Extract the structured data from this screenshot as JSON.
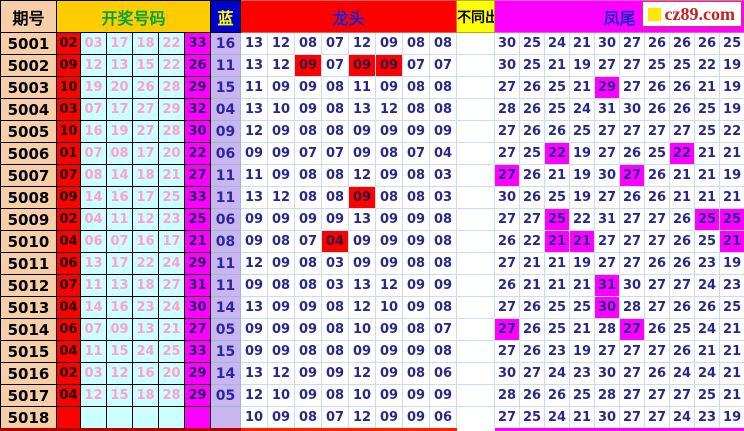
{
  "header": {
    "period_label": "期号",
    "numbers_label": "开奖号码",
    "blue_label": "蓝",
    "dragon_label": "龙头",
    "diff_label": "不同出",
    "phoenix_label": "凤尾"
  },
  "logo": {
    "text": "cz89.com"
  },
  "colors": {
    "period_bg": "#F6CEA8",
    "highlight_red": "#FF0000",
    "cyan_bg": "#CCFFFF",
    "pink_text": "#FF9FCB",
    "highlight_magenta": "#FF00FF",
    "blue_col_bg": "#C9B5F0",
    "navy_text": "#28288C",
    "gold_header_bg": "#FFCC00",
    "green_header_text": "#00A43C",
    "blue_header_bg": "#0000CC",
    "yellow_header_bg": "#FFFF00",
    "logo_text_red": "#C81E1E"
  },
  "rows": [
    {
      "period": "5001",
      "nums": [
        "02",
        "03",
        "17",
        "18",
        "22",
        "33"
      ],
      "blue": "16",
      "dragon": [
        "13",
        "12",
        "08",
        "07",
        "12",
        "09",
        "08",
        "08"
      ],
      "dragon_hl": [],
      "diff": "",
      "phoenix": [
        "30",
        "25",
        "24",
        "21",
        "30",
        "27",
        "26",
        "26",
        "26",
        "25"
      ],
      "phoenix_hl": []
    },
    {
      "period": "5002",
      "nums": [
        "09",
        "12",
        "13",
        "15",
        "22",
        "26"
      ],
      "blue": "11",
      "dragon": [
        "13",
        "12",
        "09",
        "07",
        "09",
        "09",
        "07",
        "07"
      ],
      "dragon_hl": [
        2,
        4,
        5
      ],
      "diff": "",
      "phoenix": [
        "30",
        "25",
        "21",
        "19",
        "27",
        "27",
        "25",
        "25",
        "22",
        "19"
      ],
      "phoenix_hl": []
    },
    {
      "period": "5003",
      "nums": [
        "10",
        "19",
        "20",
        "26",
        "28",
        "29"
      ],
      "blue": "15",
      "dragon": [
        "11",
        "09",
        "09",
        "08",
        "11",
        "09",
        "08",
        "08"
      ],
      "dragon_hl": [],
      "diff": "",
      "phoenix": [
        "27",
        "26",
        "25",
        "21",
        "29",
        "27",
        "26",
        "26",
        "21",
        "19"
      ],
      "phoenix_hl": [
        4
      ]
    },
    {
      "period": "5004",
      "nums": [
        "03",
        "07",
        "17",
        "27",
        "29",
        "32"
      ],
      "blue": "04",
      "dragon": [
        "13",
        "10",
        "09",
        "08",
        "13",
        "12",
        "08",
        "08"
      ],
      "dragon_hl": [],
      "diff": "",
      "phoenix": [
        "28",
        "26",
        "25",
        "24",
        "31",
        "30",
        "26",
        "26",
        "25",
        "19"
      ],
      "phoenix_hl": []
    },
    {
      "period": "5005",
      "nums": [
        "10",
        "16",
        "19",
        "27",
        "28",
        "30"
      ],
      "blue": "09",
      "dragon": [
        "12",
        "09",
        "08",
        "08",
        "09",
        "09",
        "09",
        "09"
      ],
      "dragon_hl": [],
      "diff": "",
      "phoenix": [
        "27",
        "26",
        "26",
        "25",
        "27",
        "27",
        "27",
        "27",
        "25",
        "22"
      ],
      "phoenix_hl": []
    },
    {
      "period": "5006",
      "nums": [
        "01",
        "07",
        "08",
        "17",
        "20",
        "22"
      ],
      "blue": "06",
      "dragon": [
        "09",
        "09",
        "07",
        "07",
        "09",
        "08",
        "07",
        "04"
      ],
      "dragon_hl": [],
      "diff": "",
      "phoenix": [
        "27",
        "25",
        "22",
        "19",
        "27",
        "26",
        "25",
        "22",
        "21",
        "21"
      ],
      "phoenix_hl": [
        2,
        7
      ]
    },
    {
      "period": "5007",
      "nums": [
        "07",
        "08",
        "14",
        "18",
        "21",
        "27"
      ],
      "blue": "11",
      "dragon": [
        "11",
        "09",
        "08",
        "08",
        "12",
        "09",
        "08",
        "03"
      ],
      "dragon_hl": [],
      "diff": "",
      "phoenix": [
        "27",
        "26",
        "21",
        "19",
        "30",
        "27",
        "26",
        "21",
        "21",
        "19"
      ],
      "phoenix_hl": [
        0,
        5
      ]
    },
    {
      "period": "5008",
      "nums": [
        "09",
        "14",
        "16",
        "17",
        "25",
        "33"
      ],
      "blue": "11",
      "dragon": [
        "13",
        "12",
        "08",
        "08",
        "09",
        "08",
        "08",
        "03"
      ],
      "dragon_hl": [
        4
      ],
      "diff": "",
      "phoenix": [
        "30",
        "26",
        "25",
        "19",
        "27",
        "26",
        "26",
        "21",
        "21",
        "21"
      ],
      "phoenix_hl": []
    },
    {
      "period": "5009",
      "nums": [
        "02",
        "04",
        "11",
        "12",
        "23",
        "25"
      ],
      "blue": "06",
      "dragon": [
        "09",
        "09",
        "09",
        "09",
        "13",
        "09",
        "09",
        "08"
      ],
      "dragon_hl": [],
      "diff": "",
      "phoenix": [
        "27",
        "27",
        "25",
        "22",
        "31",
        "27",
        "27",
        "26",
        "25",
        "25"
      ],
      "phoenix_hl": [
        2,
        8,
        9
      ]
    },
    {
      "period": "5010",
      "nums": [
        "04",
        "06",
        "07",
        "16",
        "17",
        "21"
      ],
      "blue": "08",
      "dragon": [
        "09",
        "08",
        "07",
        "04",
        "09",
        "09",
        "09",
        "08"
      ],
      "dragon_hl": [
        3
      ],
      "diff": "",
      "phoenix": [
        "26",
        "22",
        "21",
        "21",
        "27",
        "27",
        "27",
        "26",
        "25",
        "21"
      ],
      "phoenix_hl": [
        2,
        3,
        9
      ]
    },
    {
      "period": "5011",
      "nums": [
        "06",
        "13",
        "17",
        "22",
        "24",
        "29"
      ],
      "blue": "11",
      "dragon": [
        "12",
        "09",
        "08",
        "03",
        "09",
        "09",
        "08",
        "08"
      ],
      "dragon_hl": [],
      "diff": "",
      "phoenix": [
        "27",
        "21",
        "21",
        "19",
        "27",
        "27",
        "26",
        "26",
        "23",
        "19"
      ],
      "phoenix_hl": []
    },
    {
      "period": "5012",
      "nums": [
        "07",
        "11",
        "13",
        "18",
        "27",
        "31"
      ],
      "blue": "11",
      "dragon": [
        "09",
        "08",
        "08",
        "03",
        "13",
        "12",
        "09",
        "09"
      ],
      "dragon_hl": [],
      "diff": "",
      "phoenix": [
        "26",
        "21",
        "21",
        "21",
        "31",
        "30",
        "27",
        "27",
        "24",
        "23"
      ],
      "phoenix_hl": [
        4
      ]
    },
    {
      "period": "5013",
      "nums": [
        "04",
        "14",
        "16",
        "23",
        "24",
        "30"
      ],
      "blue": "14",
      "dragon": [
        "13",
        "09",
        "09",
        "08",
        "12",
        "10",
        "09",
        "08"
      ],
      "dragon_hl": [],
      "diff": "",
      "phoenix": [
        "27",
        "26",
        "25",
        "25",
        "30",
        "28",
        "27",
        "26",
        "26",
        "25"
      ],
      "phoenix_hl": [
        4
      ]
    },
    {
      "period": "5014",
      "nums": [
        "06",
        "07",
        "09",
        "13",
        "21",
        "27"
      ],
      "blue": "05",
      "dragon": [
        "09",
        "09",
        "09",
        "08",
        "10",
        "09",
        "08",
        "07"
      ],
      "dragon_hl": [],
      "diff": "",
      "phoenix": [
        "27",
        "26",
        "25",
        "21",
        "28",
        "27",
        "26",
        "25",
        "24",
        "21"
      ],
      "phoenix_hl": [
        0,
        5
      ]
    },
    {
      "period": "5015",
      "nums": [
        "04",
        "11",
        "15",
        "24",
        "25",
        "33"
      ],
      "blue": "15",
      "dragon": [
        "09",
        "09",
        "08",
        "08",
        "09",
        "09",
        "09",
        "08"
      ],
      "dragon_hl": [],
      "diff": "",
      "phoenix": [
        "27",
        "26",
        "23",
        "19",
        "27",
        "27",
        "27",
        "26",
        "21",
        "21"
      ],
      "phoenix_hl": []
    },
    {
      "period": "5016",
      "nums": [
        "02",
        "03",
        "12",
        "16",
        "20",
        "29"
      ],
      "blue": "14",
      "dragon": [
        "13",
        "12",
        "09",
        "09",
        "12",
        "09",
        "08",
        "06"
      ],
      "dragon_hl": [],
      "diff": "",
      "phoenix": [
        "30",
        "27",
        "24",
        "23",
        "30",
        "27",
        "26",
        "24",
        "24",
        "21"
      ],
      "phoenix_hl": []
    },
    {
      "period": "5017",
      "nums": [
        "04",
        "12",
        "15",
        "18",
        "28",
        "29"
      ],
      "blue": "05",
      "dragon": [
        "12",
        "10",
        "09",
        "08",
        "10",
        "09",
        "09",
        "09"
      ],
      "dragon_hl": [],
      "diff": "",
      "phoenix": [
        "28",
        "26",
        "26",
        "25",
        "28",
        "27",
        "27",
        "27",
        "25",
        "21"
      ],
      "phoenix_hl": []
    },
    {
      "period": "5018",
      "nums": [
        "",
        "",
        "",
        "",
        "",
        ""
      ],
      "blue": "",
      "dragon": [
        "10",
        "09",
        "08",
        "07",
        "12",
        "09",
        "09",
        "06"
      ],
      "dragon_hl": [],
      "diff": "",
      "phoenix": [
        "27",
        "25",
        "24",
        "21",
        "30",
        "27",
        "27",
        "24",
        "23",
        "19"
      ],
      "phoenix_hl": []
    }
  ]
}
